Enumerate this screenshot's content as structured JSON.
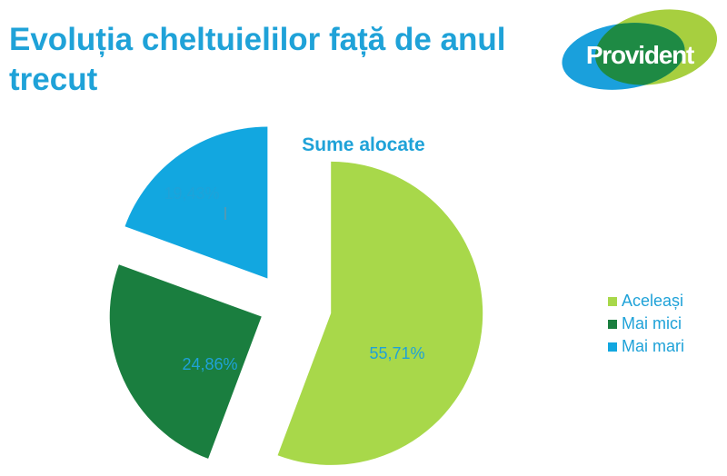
{
  "header": {
    "title": "Evoluția cheltuielilor față de anul trecut",
    "logo_text": "Provident"
  },
  "colors": {
    "title": "#1fa2d8",
    "logo_blue": "#1aa0dc",
    "logo_green": "#a7cf3f",
    "logo_overlap": "#1e8a44"
  },
  "chart_data": {
    "type": "pie",
    "title": "Sume alocate",
    "series": [
      {
        "name": "Aceleași",
        "value": 55.71,
        "label": "55,71%",
        "color": "#a8d84a"
      },
      {
        "name": "Mai mici",
        "value": 24.86,
        "label": "24,86%",
        "color": "#1a7e3f"
      },
      {
        "name": "Mai mari",
        "value": 19.43,
        "label": "19,43%",
        "color": "#12a7e0"
      }
    ],
    "legend_position": "right",
    "exploded": true
  }
}
